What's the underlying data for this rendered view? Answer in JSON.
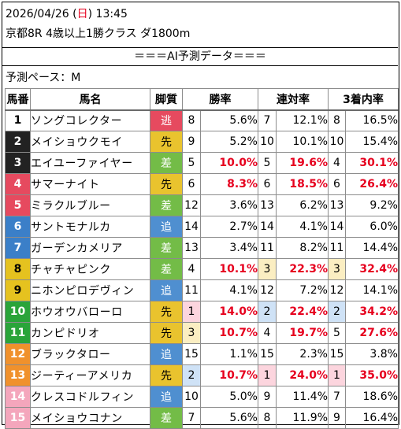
{
  "header": {
    "date": "2026/04/26",
    "weekday": "日",
    "time": "13:45",
    "race": "京都8R 4歳以上1勝クラス ダ1800m"
  },
  "banner": "＝＝＝AI予測データ＝＝＝",
  "pace": "予測ペース：M",
  "columns": [
    "馬番",
    "馬名",
    "脚質",
    "勝率",
    "連対率",
    "3着内率"
  ],
  "colors": {
    "style": {
      "逃": "#e64a5f",
      "先": "#e9c32e",
      "差": "#73bc47",
      "追": "#4f8fd0"
    },
    "highlight_value": "#e6001e",
    "rank_bg": {
      "1": "#fcd5de",
      "2": "#cfe2f6",
      "3": "#fbeec2"
    }
  },
  "horses": [
    {
      "no": "1",
      "name": "ソングコレクター",
      "style": "逃",
      "win_rank": "8",
      "win": "5.6%",
      "place_rank": "7",
      "place": "12.1%",
      "show_rank": "8",
      "show": "16.5%",
      "frame_color": "#ffffff",
      "num_text": "#000000"
    },
    {
      "no": "2",
      "name": "メイショウクモイ",
      "style": "先",
      "win_rank": "9",
      "win": "5.2%",
      "place_rank": "10",
      "place": "10.1%",
      "show_rank": "10",
      "show": "15.4%",
      "frame_color": "#222222",
      "num_text": "#ffffff"
    },
    {
      "no": "3",
      "name": "エイユーファイヤー",
      "style": "差",
      "win_rank": "5",
      "win": "10.0%",
      "place_rank": "5",
      "place": "19.6%",
      "show_rank": "4",
      "show": "30.1%",
      "frame_color": "#222222",
      "num_text": "#ffffff"
    },
    {
      "no": "4",
      "name": "サマーナイト",
      "style": "先",
      "win_rank": "6",
      "win": "8.3%",
      "place_rank": "6",
      "place": "18.5%",
      "show_rank": "6",
      "show": "26.4%",
      "frame_color": "#e64a5f",
      "num_text": "#ffffff"
    },
    {
      "no": "5",
      "name": "ミラクルブルー",
      "style": "差",
      "win_rank": "12",
      "win": "3.6%",
      "place_rank": "13",
      "place": "6.2%",
      "show_rank": "13",
      "show": "9.2%",
      "frame_color": "#e64a5f",
      "num_text": "#ffffff"
    },
    {
      "no": "6",
      "name": "サントモナルカ",
      "style": "追",
      "win_rank": "14",
      "win": "2.7%",
      "place_rank": "14",
      "place": "4.1%",
      "show_rank": "14",
      "show": "6.0%",
      "frame_color": "#3b7fc8",
      "num_text": "#ffffff"
    },
    {
      "no": "7",
      "name": "ガーデンカメリア",
      "style": "差",
      "win_rank": "13",
      "win": "3.4%",
      "place_rank": "11",
      "place": "8.2%",
      "show_rank": "11",
      "show": "14.4%",
      "frame_color": "#3b7fc8",
      "num_text": "#ffffff"
    },
    {
      "no": "8",
      "name": "チャチャピンク",
      "style": "差",
      "win_rank": "4",
      "win": "10.1%",
      "place_rank": "3",
      "place": "22.3%",
      "show_rank": "3",
      "show": "32.4%",
      "frame_color": "#e5c21f",
      "num_text": "#000000"
    },
    {
      "no": "9",
      "name": "ニホンピロデヴィン",
      "style": "追",
      "win_rank": "11",
      "win": "4.1%",
      "place_rank": "12",
      "place": "7.2%",
      "show_rank": "12",
      "show": "14.1%",
      "frame_color": "#e5c21f",
      "num_text": "#000000"
    },
    {
      "no": "10",
      "name": "ホウオウバローロ",
      "style": "先",
      "win_rank": "1",
      "win": "14.0%",
      "place_rank": "2",
      "place": "22.4%",
      "show_rank": "2",
      "show": "34.2%",
      "frame_color": "#2aa43a",
      "num_text": "#ffffff"
    },
    {
      "no": "11",
      "name": "カンピドリオ",
      "style": "先",
      "win_rank": "3",
      "win": "10.7%",
      "place_rank": "4",
      "place": "19.7%",
      "show_rank": "5",
      "show": "27.6%",
      "frame_color": "#2aa43a",
      "num_text": "#ffffff"
    },
    {
      "no": "12",
      "name": "ブラックタロー",
      "style": "追",
      "win_rank": "15",
      "win": "1.1%",
      "place_rank": "15",
      "place": "2.3%",
      "show_rank": "15",
      "show": "3.8%",
      "frame_color": "#f0912c",
      "num_text": "#ffffff"
    },
    {
      "no": "13",
      "name": "ジーティーアメリカ",
      "style": "先",
      "win_rank": "2",
      "win": "10.7%",
      "place_rank": "1",
      "place": "24.0%",
      "show_rank": "1",
      "show": "35.0%",
      "frame_color": "#f0912c",
      "num_text": "#ffffff"
    },
    {
      "no": "14",
      "name": "クレスコドルフィン",
      "style": "追",
      "win_rank": "10",
      "win": "5.0%",
      "place_rank": "9",
      "place": "11.4%",
      "show_rank": "7",
      "show": "18.6%",
      "frame_color": "#f4a6bc",
      "num_text": "#ffffff"
    },
    {
      "no": "15",
      "name": "メイショウコナン",
      "style": "差",
      "win_rank": "7",
      "win": "5.6%",
      "place_rank": "8",
      "place": "11.9%",
      "show_rank": "9",
      "show": "16.4%",
      "frame_color": "#f4a6bc",
      "num_text": "#ffffff"
    }
  ]
}
